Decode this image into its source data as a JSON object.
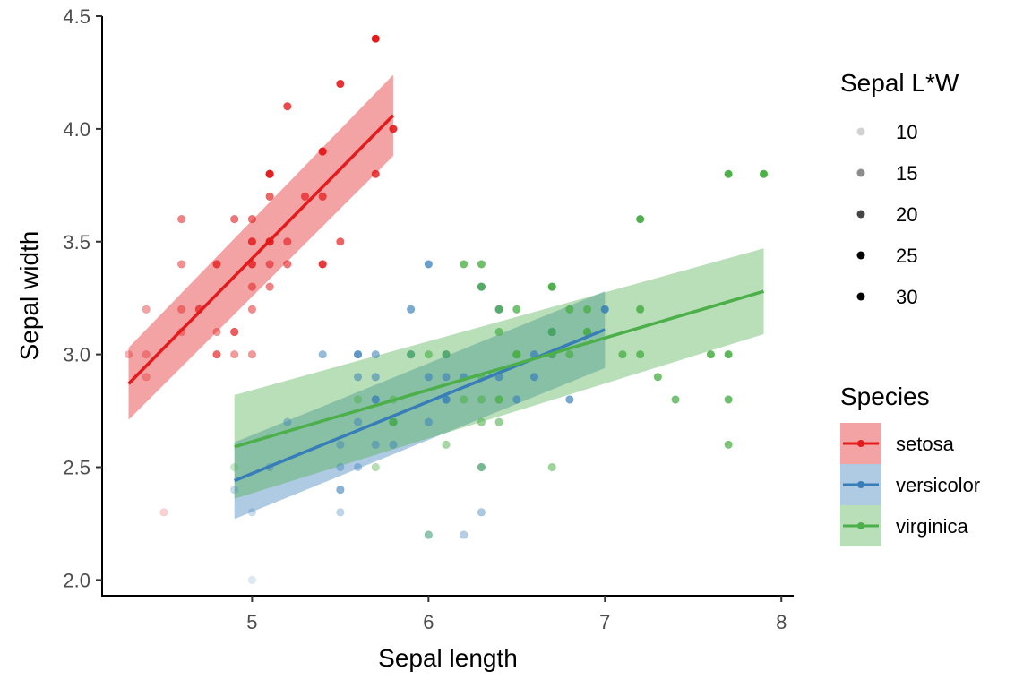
{
  "chart_data": {
    "type": "scatter",
    "xlabel": "Sepal length",
    "ylabel": "Sepal width",
    "xlim": [
      4.15,
      8.07
    ],
    "ylim": [
      1.93,
      4.5
    ],
    "x_ticks": [
      "5",
      "6",
      "7",
      "8"
    ],
    "y_ticks": [
      "2.0",
      "2.5",
      "3.0",
      "3.5",
      "4.0",
      "4.5"
    ],
    "grid": false,
    "legend_position": "right",
    "size_legend": {
      "title": "Sepal L*W",
      "labels": [
        "10",
        "15",
        "20",
        "25",
        "30"
      ],
      "values": [
        10,
        15,
        20,
        25,
        30
      ]
    },
    "species_legend": {
      "title": "Species",
      "labels": [
        "setosa",
        "versicolor",
        "virginica"
      ]
    },
    "colors": {
      "setosa": "#e41a1c",
      "versicolor": "#377eb8",
      "virginica": "#4daf4a"
    },
    "series": [
      {
        "name": "setosa",
        "fit": {
          "x": [
            4.3,
            5.8
          ],
          "y": [
            2.87,
            4.06
          ],
          "band_low": [
            2.71,
            3.88
          ],
          "band_high": [
            3.03,
            4.24
          ]
        },
        "points": [
          [
            4.3,
            3.0
          ],
          [
            4.4,
            3.0
          ],
          [
            4.4,
            2.9
          ],
          [
            4.4,
            3.2
          ],
          [
            4.5,
            2.3
          ],
          [
            4.6,
            3.1
          ],
          [
            4.6,
            3.4
          ],
          [
            4.6,
            3.6
          ],
          [
            4.6,
            3.2
          ],
          [
            4.7,
            3.2
          ],
          [
            4.7,
            3.2
          ],
          [
            4.8,
            3.4
          ],
          [
            4.8,
            3.0
          ],
          [
            4.8,
            3.0
          ],
          [
            4.8,
            3.1
          ],
          [
            4.8,
            3.4
          ],
          [
            4.9,
            3.0
          ],
          [
            4.9,
            3.1
          ],
          [
            4.9,
            3.6
          ],
          [
            4.9,
            3.1
          ],
          [
            5.0,
            3.6
          ],
          [
            5.0,
            3.4
          ],
          [
            5.0,
            3.0
          ],
          [
            5.0,
            3.4
          ],
          [
            5.0,
            3.2
          ],
          [
            5.0,
            3.5
          ],
          [
            5.0,
            3.5
          ],
          [
            5.0,
            3.3
          ],
          [
            5.1,
            3.5
          ],
          [
            5.1,
            3.5
          ],
          [
            5.1,
            3.8
          ],
          [
            5.1,
            3.7
          ],
          [
            5.1,
            3.3
          ],
          [
            5.1,
            3.4
          ],
          [
            5.1,
            3.8
          ],
          [
            5.1,
            3.8
          ],
          [
            5.1,
            3.5
          ],
          [
            5.2,
            3.5
          ],
          [
            5.2,
            3.4
          ],
          [
            5.2,
            4.1
          ],
          [
            5.3,
            3.7
          ],
          [
            5.4,
            3.9
          ],
          [
            5.4,
            3.7
          ],
          [
            5.4,
            3.9
          ],
          [
            5.4,
            3.4
          ],
          [
            5.4,
            3.4
          ],
          [
            5.5,
            4.2
          ],
          [
            5.5,
            3.5
          ],
          [
            5.7,
            4.4
          ],
          [
            5.7,
            3.8
          ],
          [
            5.8,
            4.0
          ]
        ]
      },
      {
        "name": "versicolor",
        "fit": {
          "x": [
            4.9,
            7.0
          ],
          "y": [
            2.44,
            3.11
          ],
          "band_low": [
            2.27,
            2.94
          ],
          "band_high": [
            2.61,
            3.28
          ]
        },
        "points": [
          [
            4.9,
            2.4
          ],
          [
            5.0,
            2.3
          ],
          [
            5.0,
            2.0
          ],
          [
            5.1,
            2.5
          ],
          [
            5.2,
            2.7
          ],
          [
            5.4,
            3.0
          ],
          [
            5.5,
            2.3
          ],
          [
            5.5,
            2.4
          ],
          [
            5.5,
            2.4
          ],
          [
            5.5,
            2.5
          ],
          [
            5.5,
            2.6
          ],
          [
            5.6,
            2.9
          ],
          [
            5.6,
            3.0
          ],
          [
            5.6,
            2.5
          ],
          [
            5.6,
            2.7
          ],
          [
            5.6,
            3.0
          ],
          [
            5.7,
            2.8
          ],
          [
            5.7,
            2.6
          ],
          [
            5.7,
            3.0
          ],
          [
            5.7,
            2.9
          ],
          [
            5.7,
            2.8
          ],
          [
            5.8,
            2.7
          ],
          [
            5.8,
            2.7
          ],
          [
            5.8,
            2.6
          ],
          [
            5.9,
            3.0
          ],
          [
            5.9,
            3.2
          ],
          [
            6.0,
            2.2
          ],
          [
            6.0,
            2.9
          ],
          [
            6.0,
            2.7
          ],
          [
            6.0,
            3.4
          ],
          [
            6.1,
            2.9
          ],
          [
            6.1,
            2.8
          ],
          [
            6.1,
            2.8
          ],
          [
            6.1,
            3.0
          ],
          [
            6.2,
            2.2
          ],
          [
            6.2,
            2.9
          ],
          [
            6.3,
            3.3
          ],
          [
            6.3,
            2.5
          ],
          [
            6.3,
            2.3
          ],
          [
            6.4,
            3.2
          ],
          [
            6.4,
            2.9
          ],
          [
            6.5,
            2.8
          ],
          [
            6.6,
            2.9
          ],
          [
            6.6,
            3.0
          ],
          [
            6.7,
            3.1
          ],
          [
            6.7,
            3.0
          ],
          [
            6.7,
            3.1
          ],
          [
            6.8,
            2.8
          ],
          [
            6.9,
            3.1
          ],
          [
            7.0,
            3.2
          ]
        ]
      },
      {
        "name": "virginica",
        "fit": {
          "x": [
            4.9,
            7.9
          ],
          "y": [
            2.59,
            3.28
          ],
          "band_low": [
            2.36,
            3.09
          ],
          "band_high": [
            2.82,
            3.47
          ]
        },
        "points": [
          [
            4.9,
            2.5
          ],
          [
            5.6,
            2.8
          ],
          [
            5.7,
            2.5
          ],
          [
            5.8,
            2.7
          ],
          [
            5.8,
            2.8
          ],
          [
            5.8,
            2.7
          ],
          [
            5.8,
            2.7
          ],
          [
            5.9,
            3.0
          ],
          [
            6.0,
            2.2
          ],
          [
            6.0,
            3.0
          ],
          [
            6.1,
            3.0
          ],
          [
            6.1,
            2.6
          ],
          [
            6.2,
            2.8
          ],
          [
            6.2,
            3.4
          ],
          [
            6.3,
            3.3
          ],
          [
            6.3,
            2.9
          ],
          [
            6.3,
            2.5
          ],
          [
            6.3,
            2.8
          ],
          [
            6.3,
            2.7
          ],
          [
            6.3,
            3.4
          ],
          [
            6.4,
            2.8
          ],
          [
            6.4,
            3.2
          ],
          [
            6.4,
            2.7
          ],
          [
            6.4,
            2.8
          ],
          [
            6.4,
            3.1
          ],
          [
            6.5,
            3.0
          ],
          [
            6.5,
            3.2
          ],
          [
            6.5,
            3.0
          ],
          [
            6.5,
            3.0
          ],
          [
            6.7,
            2.5
          ],
          [
            6.7,
            3.3
          ],
          [
            6.7,
            3.1
          ],
          [
            6.7,
            3.0
          ],
          [
            6.7,
            3.3
          ],
          [
            6.8,
            3.0
          ],
          [
            6.8,
            3.2
          ],
          [
            6.9,
            3.1
          ],
          [
            6.9,
            3.2
          ],
          [
            6.9,
            3.1
          ],
          [
            7.1,
            3.0
          ],
          [
            7.2,
            3.6
          ],
          [
            7.2,
            3.2
          ],
          [
            7.2,
            3.0
          ],
          [
            7.3,
            2.9
          ],
          [
            7.4,
            2.8
          ],
          [
            7.6,
            3.0
          ],
          [
            7.7,
            3.8
          ],
          [
            7.7,
            2.6
          ],
          [
            7.7,
            2.8
          ],
          [
            7.7,
            3.0
          ],
          [
            7.9,
            3.8
          ]
        ]
      }
    ]
  }
}
